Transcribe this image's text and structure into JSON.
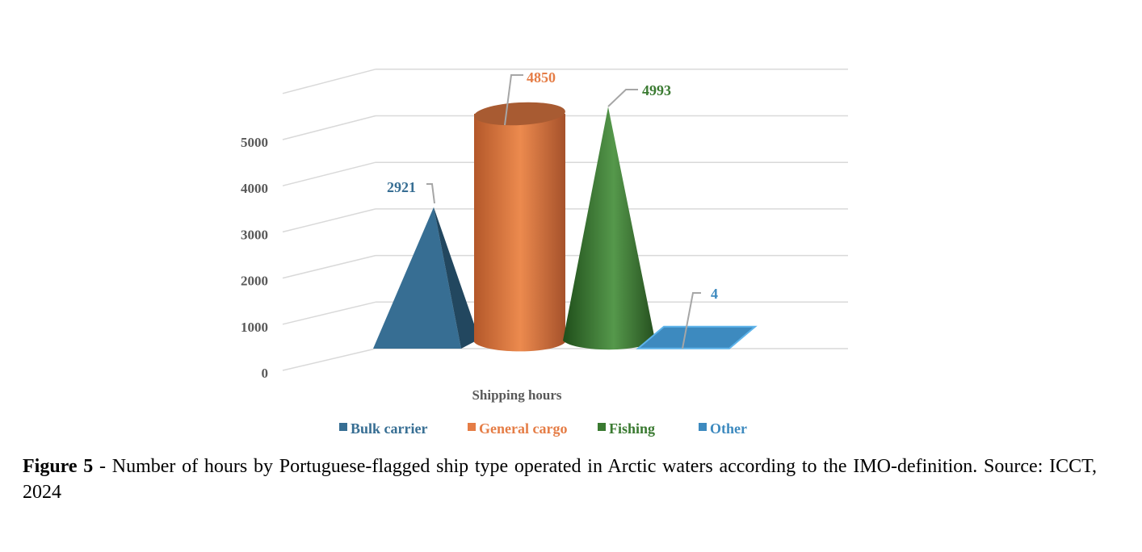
{
  "chart_data": {
    "type": "bar",
    "style": "3d",
    "categories": [
      "Shipping hours"
    ],
    "xlabel": "Shipping hours",
    "ylabel": "",
    "ylim": [
      0,
      6000
    ],
    "yticks": [
      "0",
      "1000",
      "2000",
      "3000",
      "4000",
      "5000"
    ],
    "grid": true,
    "legend_position": "bottom",
    "series": [
      {
        "name": "Bulk carrier",
        "values": [
          2921
        ],
        "shape": "pyramid",
        "color": "#376E93",
        "label": "2921"
      },
      {
        "name": "General cargo",
        "values": [
          4850
        ],
        "shape": "cylinder",
        "color": "#E57D46",
        "label": "4850"
      },
      {
        "name": "Fishing",
        "values": [
          4993
        ],
        "shape": "cone",
        "color": "#3A7A31",
        "label": "4993"
      },
      {
        "name": "Other",
        "values": [
          4
        ],
        "shape": "box",
        "color": "#3D8ABF",
        "label": "4"
      }
    ]
  },
  "caption": {
    "figure_label": "Figure 5",
    "text": " - Number of hours by Portuguese-flagged ship type operated in Arctic waters according to the IMO-definition. Source: ICCT, 2024"
  }
}
